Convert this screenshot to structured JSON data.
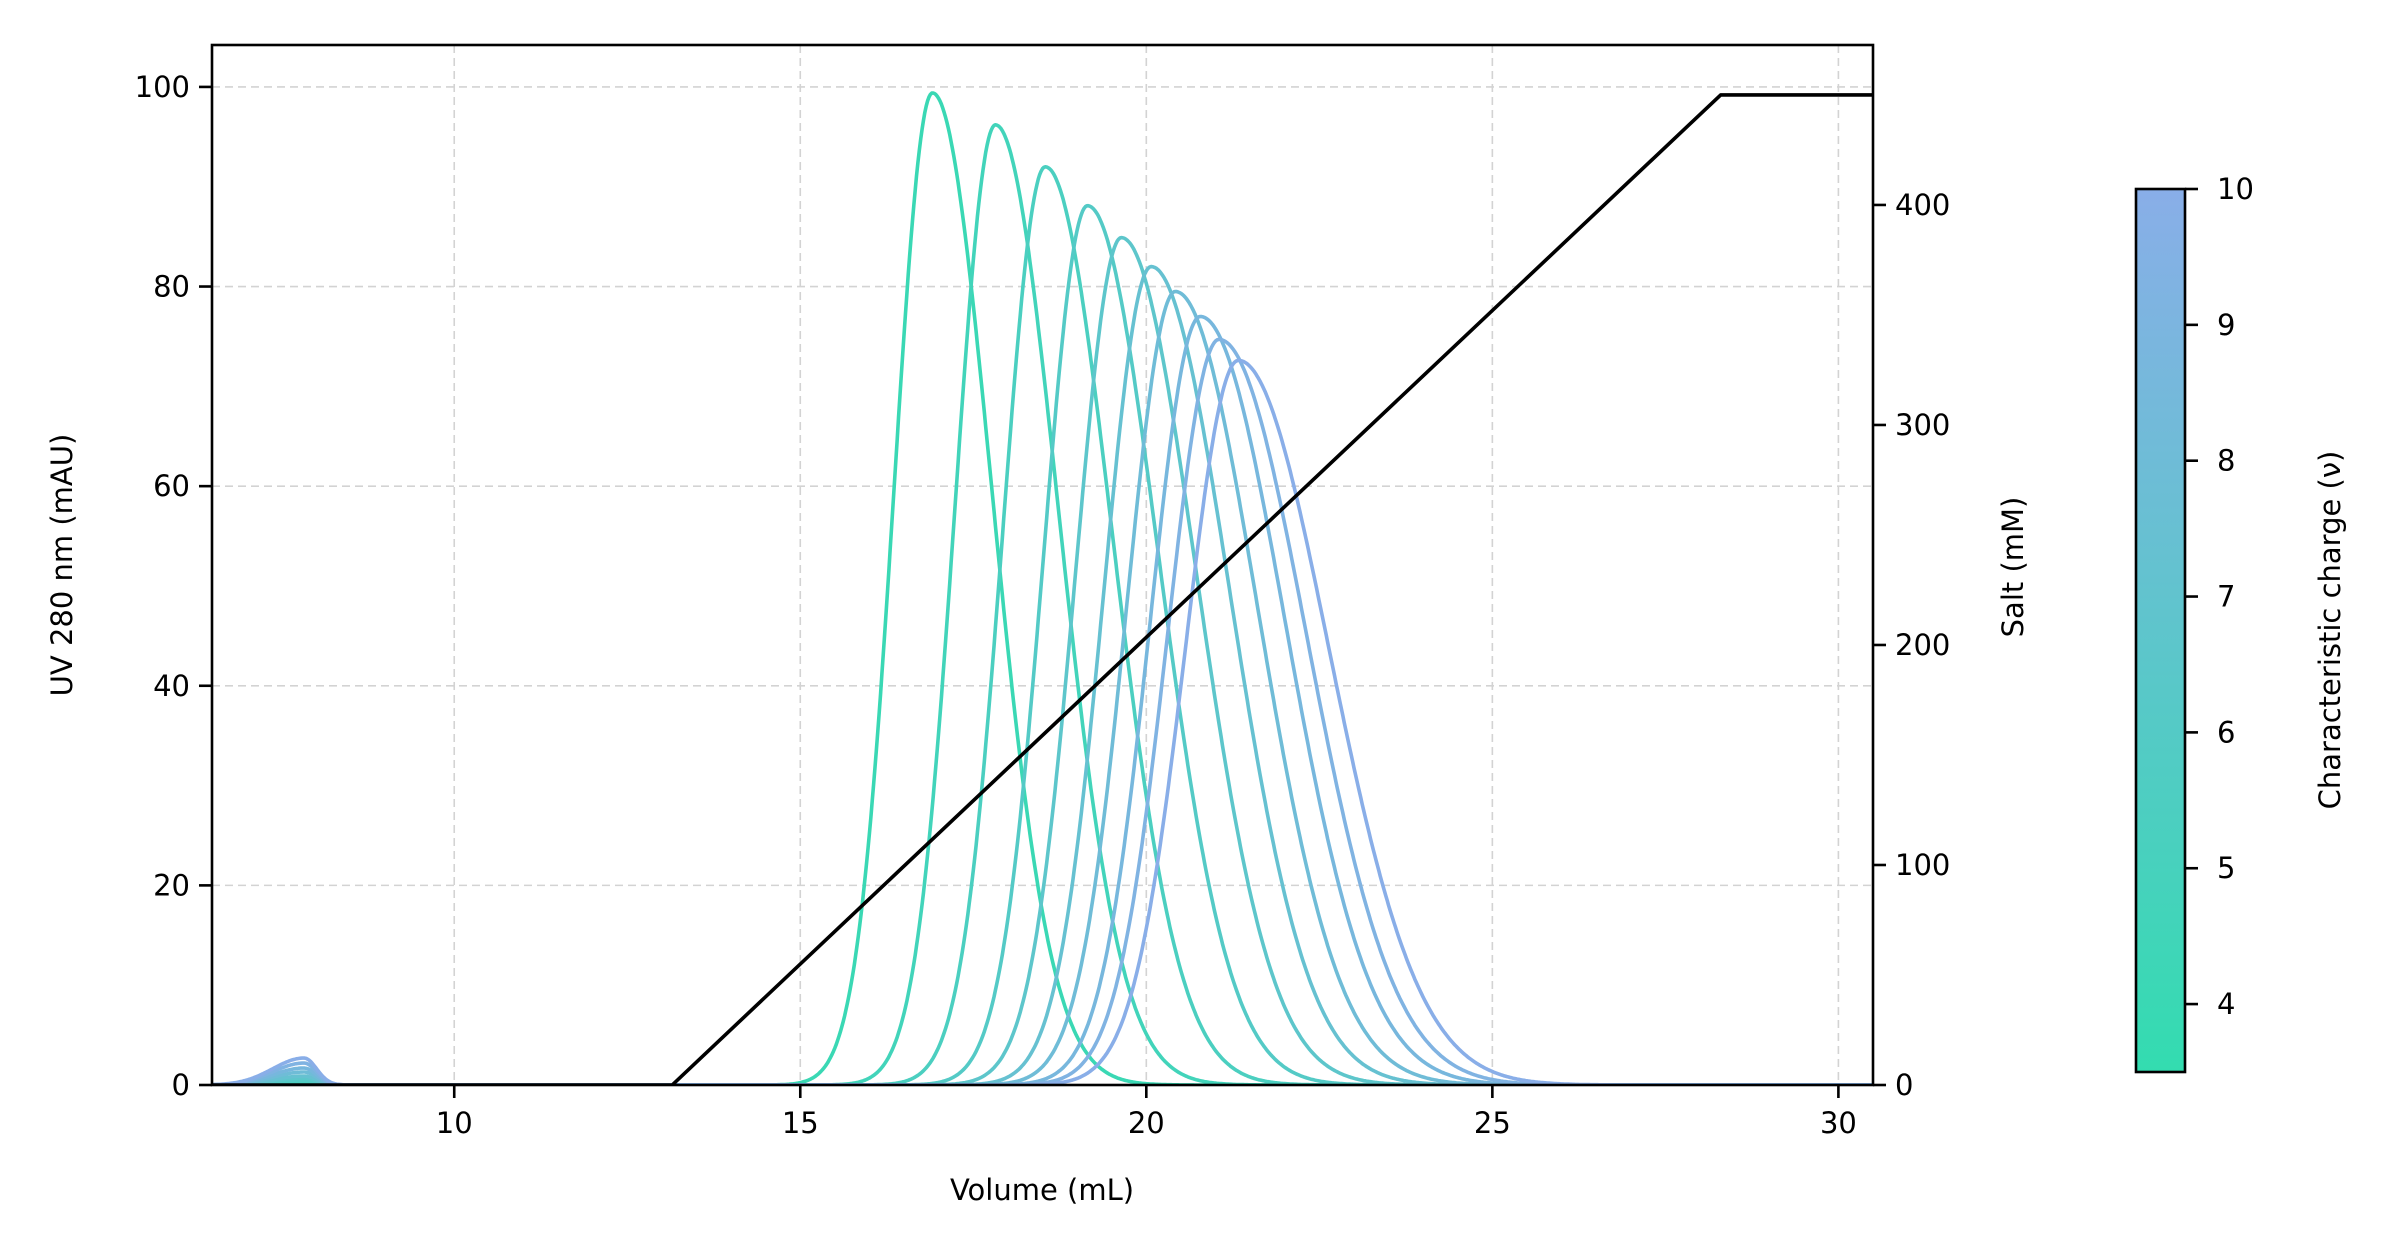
{
  "chart_data": {
    "type": "line",
    "title": "",
    "xlabel": "Volume (mL)",
    "ylabel": "UV 280 nm (mAU)",
    "y2label": "Salt (mM)",
    "xlim": [
      6.5,
      30.5
    ],
    "ylim": [
      0,
      104.2
    ],
    "y2lim": [
      0,
      472.7
    ],
    "xticks": [
      10,
      15,
      20,
      25,
      30
    ],
    "yticks": [
      0,
      20,
      40,
      60,
      80,
      100
    ],
    "y2ticks": [
      0,
      100,
      200,
      300,
      400
    ],
    "grid": true,
    "colorbar": {
      "label": "Characteristic charge (ν)",
      "range": [
        3.5,
        10
      ],
      "ticks": [
        4,
        5,
        6,
        7,
        8,
        9,
        10
      ],
      "color_low": "#33dcb0",
      "color_high": "#89aee8"
    },
    "salt_gradient": {
      "name": "Salt (mM)",
      "color": "#000000",
      "points": [
        [
          6.5,
          0
        ],
        [
          13.15,
          0
        ],
        [
          28.3,
          450
        ],
        [
          30.5,
          450
        ]
      ]
    },
    "series": [
      {
        "name": "nu=4.0",
        "nu": 4.0,
        "peak_volume": 16.91,
        "peak_height": 99.4,
        "sigma_left": 0.55,
        "sigma_right": 0.85,
        "breakthrough_height": 0.1
      },
      {
        "name": "nu=4.67",
        "nu": 4.67,
        "peak_volume": 17.82,
        "peak_height": 96.2,
        "sigma_left": 0.58,
        "sigma_right": 0.9,
        "breakthrough_height": 0.2
      },
      {
        "name": "nu=5.33",
        "nu": 5.33,
        "peak_volume": 18.54,
        "peak_height": 92.0,
        "sigma_left": 0.61,
        "sigma_right": 0.96,
        "breakthrough_height": 0.3
      },
      {
        "name": "nu=6.0",
        "nu": 6.0,
        "peak_volume": 19.15,
        "peak_height": 88.1,
        "sigma_left": 0.63,
        "sigma_right": 1.02,
        "breakthrough_height": 0.5
      },
      {
        "name": "nu=6.67",
        "nu": 6.67,
        "peak_volume": 19.64,
        "peak_height": 84.9,
        "sigma_left": 0.66,
        "sigma_right": 1.08,
        "breakthrough_height": 0.7
      },
      {
        "name": "nu=7.33",
        "nu": 7.33,
        "peak_volume": 20.07,
        "peak_height": 82.0,
        "sigma_left": 0.68,
        "sigma_right": 1.13,
        "breakthrough_height": 0.9
      },
      {
        "name": "nu=8.0",
        "nu": 8.0,
        "peak_volume": 20.42,
        "peak_height": 79.5,
        "sigma_left": 0.7,
        "sigma_right": 1.18,
        "breakthrough_height": 1.3
      },
      {
        "name": "nu=8.67",
        "nu": 8.67,
        "peak_volume": 20.78,
        "peak_height": 77.0,
        "sigma_left": 0.72,
        "sigma_right": 1.22,
        "breakthrough_height": 1.7
      },
      {
        "name": "nu=9.33",
        "nu": 9.33,
        "peak_volume": 21.05,
        "peak_height": 74.7,
        "sigma_left": 0.74,
        "sigma_right": 1.26,
        "breakthrough_height": 2.2
      },
      {
        "name": "nu=10.0",
        "nu": 10.0,
        "peak_volume": 21.33,
        "peak_height": 72.6,
        "sigma_left": 0.76,
        "sigma_right": 1.3,
        "breakthrough_height": 2.7
      }
    ],
    "breakthrough_peak_volume": 7.83
  },
  "labels": {
    "xlabel": "Volume (mL)",
    "ylabel": "UV 280 nm (mAU)",
    "y2label": "Salt (mM)",
    "colorbar_label": "Characteristic charge (ν)"
  }
}
